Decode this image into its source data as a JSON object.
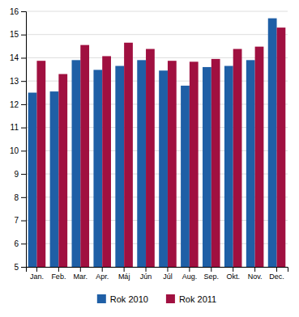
{
  "chart_data": {
    "type": "bar",
    "categories": [
      "Jan.",
      "Feb.",
      "Mar.",
      "Apr.",
      "Máj",
      "Jún",
      "Júl",
      "Aug.",
      "Sep.",
      "Okt.",
      "Nov.",
      "Dec."
    ],
    "series": [
      {
        "name": "Rok 2010",
        "color": "#1f5fa6",
        "values": [
          12.5,
          12.55,
          13.9,
          13.48,
          13.65,
          13.9,
          13.45,
          12.8,
          13.6,
          13.65,
          13.9,
          15.7
        ]
      },
      {
        "name": "Rok 2011",
        "color": "#a01040",
        "values": [
          13.87,
          13.3,
          14.55,
          14.07,
          14.65,
          14.38,
          13.87,
          13.83,
          13.95,
          14.38,
          14.48,
          15.3
        ]
      }
    ],
    "ylim": [
      5,
      16
    ],
    "yticks": [
      5,
      6,
      7,
      8,
      9,
      10,
      11,
      12,
      13,
      14,
      15,
      16
    ],
    "grid": true,
    "legend": "bottom"
  }
}
